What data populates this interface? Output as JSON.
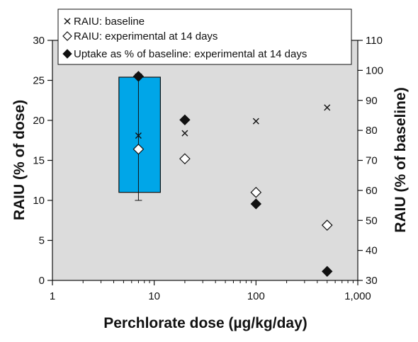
{
  "chart_data": {
    "type": "scatter",
    "title": "",
    "xlabel": "Perchlorate dose (µg/kg/day)",
    "ylabel_left": "RAIU (% of dose)",
    "ylabel_right": "RAIU (% of baseline)",
    "x_scale": "log",
    "xlim": [
      1,
      1000
    ],
    "ylim_left": [
      0,
      30
    ],
    "ylim_right": [
      30,
      110
    ],
    "x_ticks": [
      1,
      10,
      100,
      1000
    ],
    "x_tick_labels": [
      "1",
      "10",
      "100",
      "1,000"
    ],
    "y_left_ticks": [
      0,
      5,
      10,
      15,
      20,
      25,
      30
    ],
    "y_left_tick_labels": [
      "0",
      "5",
      "10",
      "15",
      "20",
      "25",
      "30"
    ],
    "y_right_ticks": [
      30,
      40,
      50,
      60,
      70,
      80,
      90,
      100,
      110
    ],
    "y_right_tick_labels": [
      "30",
      "40",
      "50",
      "60",
      "70",
      "80",
      "90",
      "100",
      "110"
    ],
    "legend_position": "top",
    "grid": false,
    "plot_background": "#dcdcdc",
    "box": {
      "x": 7,
      "x_left": 4.5,
      "x_right": 11.5,
      "q1": 11,
      "q3": 25.4,
      "whisker_low": 10,
      "whisker_high": 25.8,
      "axis": "left",
      "color": "#00a6e8"
    },
    "series": [
      {
        "name": "RAIU: baseline",
        "marker": "x",
        "axis": "left",
        "points": [
          {
            "x": 7,
            "y": 18.1
          },
          {
            "x": 20,
            "y": 18.4
          },
          {
            "x": 100,
            "y": 19.9
          },
          {
            "x": 500,
            "y": 21.6
          }
        ]
      },
      {
        "name": "RAIU: experimental at 14 days",
        "marker": "open-diamond",
        "axis": "left",
        "points": [
          {
            "x": 7,
            "y": 16.4
          },
          {
            "x": 20,
            "y": 15.2
          },
          {
            "x": 100,
            "y": 11.0
          },
          {
            "x": 500,
            "y": 6.9
          }
        ]
      },
      {
        "name": "Uptake as % of baseline: experimental at 14 days",
        "marker": "filled-diamond",
        "axis": "right",
        "points": [
          {
            "x": 7,
            "y": 98
          },
          {
            "x": 20,
            "y": 83.5
          },
          {
            "x": 100,
            "y": 55.5
          },
          {
            "x": 500,
            "y": 33
          }
        ]
      }
    ]
  }
}
